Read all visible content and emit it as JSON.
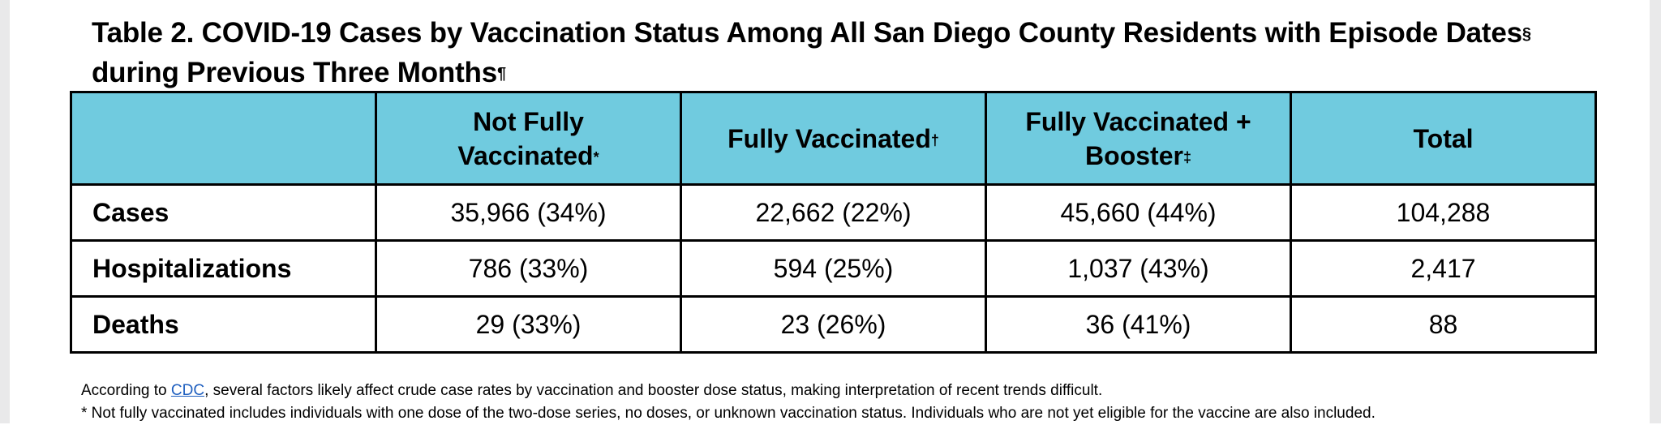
{
  "title": {
    "line1": "Table 2. COVID-19 Cases by Vaccination Status Among All San Diego County Residents with Episode Dates",
    "line1_mark": "§",
    "line2": "during Previous Three Months",
    "line2_mark": "¶"
  },
  "table": {
    "headers": [
      {
        "label": "",
        "mark": ""
      },
      {
        "label": "Not Fully Vaccinated",
        "mark": "*"
      },
      {
        "label": "Fully Vaccinated",
        "mark": "†"
      },
      {
        "label": "Fully Vaccinated + Booster",
        "mark": "‡"
      },
      {
        "label": "Total",
        "mark": ""
      }
    ],
    "rows": [
      {
        "label": "Cases",
        "cells": [
          "35,966 (34%)",
          "22,662 (22%)",
          "45,660 (44%)",
          "104,288"
        ]
      },
      {
        "label": "Hospitalizations",
        "cells": [
          "786 (33%)",
          "594 (25%)",
          "1,037 (43%)",
          "2,417"
        ]
      },
      {
        "label": "Deaths",
        "cells": [
          "29 (33%)",
          "23 (26%)",
          "36 (41%)",
          "88"
        ]
      }
    ],
    "header_color": "#70cbdf"
  },
  "notes": {
    "line1_prefix": "According to ",
    "line1_link": "CDC",
    "line1_suffix": ", several factors likely affect crude case rates by vaccination and booster dose status, making interpretation of recent trends difficult.",
    "line2": "* Not fully vaccinated includes individuals with one dose of the two-dose series, no doses, or unknown vaccination status. Individuals who are not yet eligible for the vaccine are also included."
  }
}
